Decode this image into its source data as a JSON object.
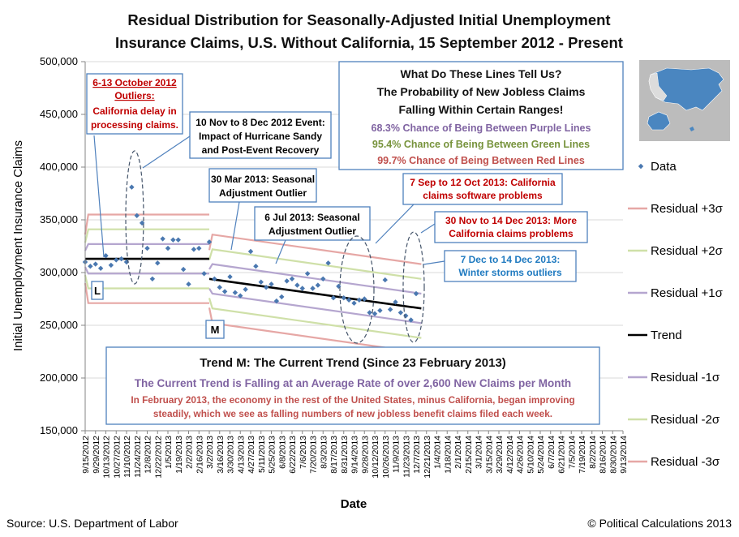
{
  "chart_data": {
    "type": "line",
    "title": [
      "Residual Distribution for Seasonally-Adjusted Initial Unemployment",
      "Insurance Claims, U.S. Without California, 15 September 2012 - Present"
    ],
    "xlabel": "Date",
    "ylabel": "Initial Unemployment Insurance Claims",
    "ylim": [
      150000,
      500000
    ],
    "yticks": [
      "150,000",
      "200,000",
      "250,000",
      "300,000",
      "350,000",
      "400,000",
      "450,000",
      "500,000"
    ],
    "xticks": [
      "9/15/2012",
      "9/29/2012",
      "10/13/2012",
      "10/27/2012",
      "11/10/2012",
      "11/24/2012",
      "12/8/2012",
      "12/22/2012",
      "1/5/2013",
      "1/19/2013",
      "2/2/2013",
      "2/16/2013",
      "3/2/2013",
      "3/16/2013",
      "3/30/2013",
      "4/13/2013",
      "4/27/2013",
      "5/11/2013",
      "5/25/2013",
      "6/8/2013",
      "6/22/2013",
      "7/6/2013",
      "7/20/2013",
      "8/3/2013",
      "8/17/2013",
      "8/31/2013",
      "9/14/2013",
      "9/28/2013",
      "10/12/2013",
      "10/26/2013",
      "11/9/2013",
      "11/23/2013",
      "12/7/2013",
      "12/21/2013",
      "1/4/2014",
      "1/18/2014",
      "2/1/2014",
      "2/15/2014",
      "3/1/2014",
      "3/15/2014",
      "3/29/2014",
      "4/12/2014",
      "4/26/2014",
      "5/10/2014",
      "5/24/2014",
      "6/7/2014",
      "6/21/2014",
      "7/5/2014",
      "7/19/2014",
      "8/2/2014",
      "8/16/2014",
      "8/30/2014",
      "9/13/2014"
    ],
    "legend": [
      "Data",
      "Residual +3σ",
      "Residual +2σ",
      "Residual +1σ",
      "Trend",
      "Residual -1σ",
      "Residual -2σ",
      "Residual -3σ"
    ],
    "colors": {
      "data": "#4a78b0",
      "red": "#e6a7a5",
      "green": "#cfe0a8",
      "purple": "#b5a6cf",
      "trend": "#000000",
      "box": "#4f81bd",
      "map_bg": "#bcbcbc",
      "map_us": "#4a86c0"
    },
    "series": [
      {
        "name": "Data",
        "x_week": [
          0,
          1,
          2,
          3,
          4,
          5,
          6,
          7,
          8,
          9,
          10,
          11,
          12,
          13,
          14,
          15,
          16,
          17,
          18,
          19,
          20,
          21,
          22,
          23,
          24,
          25,
          26,
          27,
          28,
          29,
          30,
          31,
          32,
          33,
          34,
          35,
          36,
          37,
          38,
          39,
          40,
          41,
          42,
          43,
          44,
          45,
          46,
          47,
          48,
          49,
          50,
          51,
          52,
          53,
          54,
          55,
          56,
          57,
          58,
          59,
          60,
          61,
          62,
          63,
          64
        ],
        "values": [
          310000,
          306000,
          308000,
          304000,
          316000,
          307000,
          312000,
          313000,
          310000,
          381000,
          354000,
          347000,
          323000,
          294000,
          309000,
          332000,
          323000,
          331000,
          331000,
          303000,
          289000,
          322000,
          323000,
          299000,
          329000,
          294000,
          286000,
          282000,
          296000,
          281000,
          278000,
          284000,
          320000,
          306000,
          291000,
          286000,
          289000,
          273000,
          277000,
          292000,
          294000,
          288000,
          285000,
          299000,
          285000,
          288000,
          294000,
          309000,
          276000,
          287000,
          276000,
          274000,
          271000,
          274000,
          275000,
          262000,
          261000,
          264000,
          293000,
          265000,
          272000,
          262000,
          259000,
          255000,
          280000
        ]
      },
      {
        "name": "Trend",
        "segments": [
          {
            "label": "L",
            "x_week": [
              0,
              24
            ],
            "values": [
              313000,
              313000
            ]
          },
          {
            "label": "M",
            "x_week": [
              24,
              65
            ],
            "values": [
              294000,
              266000
            ]
          }
        ]
      },
      {
        "name": "Residual +3σ",
        "offset": 42000
      },
      {
        "name": "Residual +2σ",
        "offset": 28000
      },
      {
        "name": "Residual +1σ",
        "offset": 14000
      },
      {
        "name": "Residual -1σ",
        "offset": -14000
      },
      {
        "name": "Residual -2σ",
        "offset": -28000
      },
      {
        "name": "Residual -3σ",
        "offset": -42000
      }
    ],
    "segment_labels": [
      "L",
      "M"
    ],
    "info_box": {
      "lines": [
        "What Do These Lines Tell Us?",
        "The Probability of New Jobless Claims",
        "Falling Within Certain Ranges!"
      ],
      "purple": "68.3% Chance of Being Between Purple Lines",
      "green": "95.4% Chance of Being Between Green Lines",
      "red": "99.7% Chance of Being Between Red Lines"
    },
    "trend_box": {
      "title": "Trend M: The Current Trend (Since 23 February 2013)",
      "subtitle": "The Current Trend is Falling at an Average Rate of over 2,600 New Claims per Month",
      "body": [
        "In February 2013, the economy in the rest of the United States, minus California,  began improving",
        "steadily, which we see as falling numbers of new jobless benefit claims filed  each week."
      ]
    },
    "annotations": [
      {
        "lines": [
          "6-13 October 2012",
          "Outliers:",
          "California delay in",
          "processing claims."
        ]
      },
      {
        "lines": [
          "10 Nov to 8 Dec 2012 Event:",
          "Impact of Hurricane Sandy",
          "and Post-Event Recovery"
        ]
      },
      {
        "lines": [
          "30 Mar 2013: Seasonal",
          "Adjustment Outlier"
        ]
      },
      {
        "lines": [
          "6 Jul 2013: Seasonal",
          "Adjustment Outlier"
        ]
      },
      {
        "lines": [
          "7 Sep to 12 Oct 2013: California",
          "claims software problems"
        ]
      },
      {
        "lines": [
          "30 Nov to 14 Dec 2013: More",
          "California claims problems"
        ]
      },
      {
        "lines": [
          "7 Dec to 14 Dec 2013:",
          "Winter storms outliers"
        ]
      }
    ]
  },
  "footer": {
    "source": "Source: U.S. Department of Labor",
    "credit": "© Political Calculations 2013"
  }
}
